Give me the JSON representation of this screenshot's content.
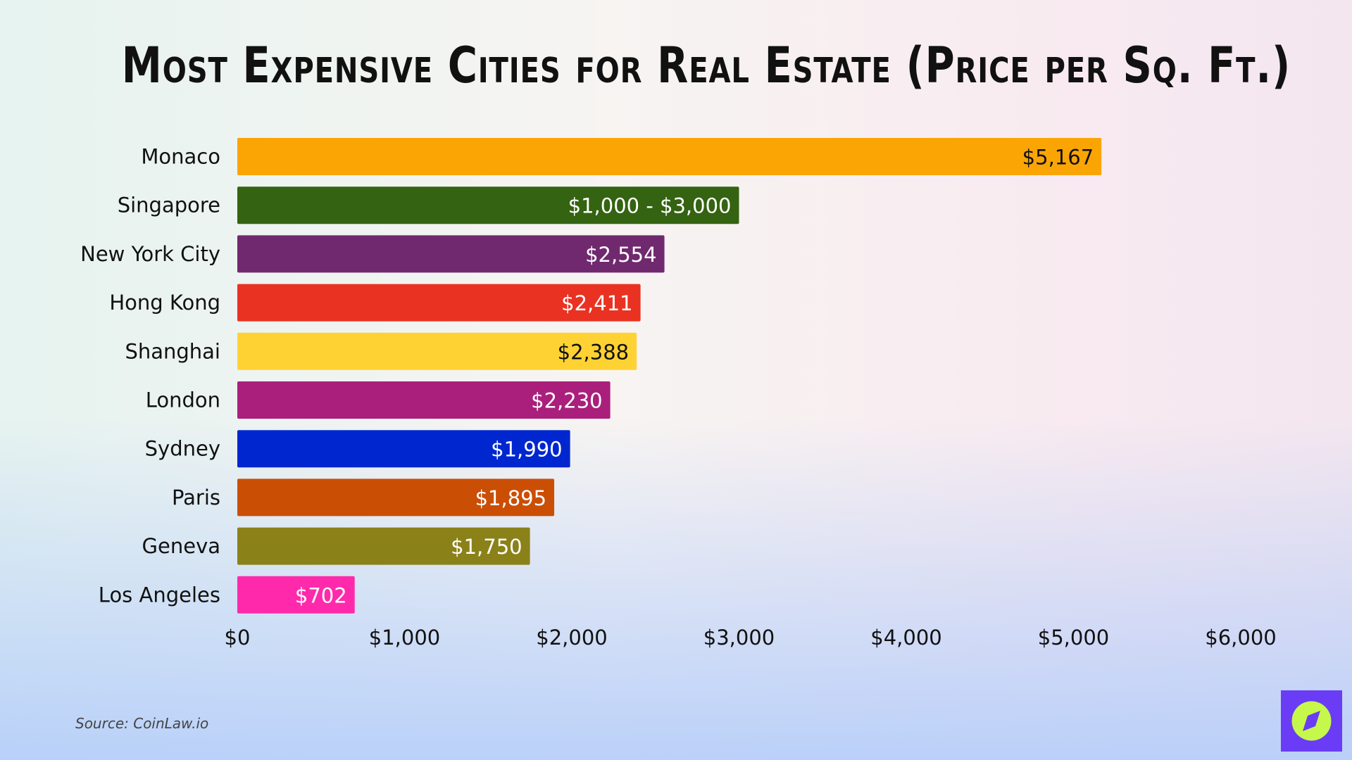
{
  "chart_data": {
    "type": "bar",
    "orientation": "horizontal",
    "title": "Most Expensive Cities for Real Estate (Price per Sq. Ft.)",
    "categories": [
      "Monaco",
      "Singapore",
      "New York City",
      "Hong Kong",
      "Shanghai",
      "London",
      "Sydney",
      "Paris",
      "Geneva",
      "Los Angeles"
    ],
    "values": [
      5167,
      3000,
      2554,
      2411,
      2388,
      2230,
      1990,
      1895,
      1750,
      702
    ],
    "value_labels": [
      "$5,167",
      "$1,000 - $3,000",
      "$2,554",
      "$2,411",
      "$2,388",
      "$2,230",
      "$1,990",
      "$1,895",
      "$1,750",
      "$702"
    ],
    "colors": [
      "#fba505",
      "#346311",
      "#70296f",
      "#ea3222",
      "#ffd233",
      "#aa1f7c",
      "#0027cf",
      "#cb4e05",
      "#8b8119",
      "#ff2aab"
    ],
    "label_colors": [
      "#111111",
      "#ffffff",
      "#ffffff",
      "#ffffff",
      "#111111",
      "#ffffff",
      "#ffffff",
      "#ffffff",
      "#ffffff",
      "#ffffff"
    ],
    "xlim": [
      0,
      6000
    ],
    "xticks": [
      0,
      1000,
      2000,
      3000,
      4000,
      5000,
      6000
    ],
    "xtick_labels": [
      "$0",
      "$1,000",
      "$2,000",
      "$3,000",
      "$4,000",
      "$5,000",
      "$6,000"
    ],
    "xlabel": "",
    "ylabel": "",
    "grid": false
  },
  "source": "Source: CoinLaw.io",
  "logo": {
    "icon": "compass-icon",
    "bg": "#6b3cf5",
    "fg": "#c6f84b"
  }
}
